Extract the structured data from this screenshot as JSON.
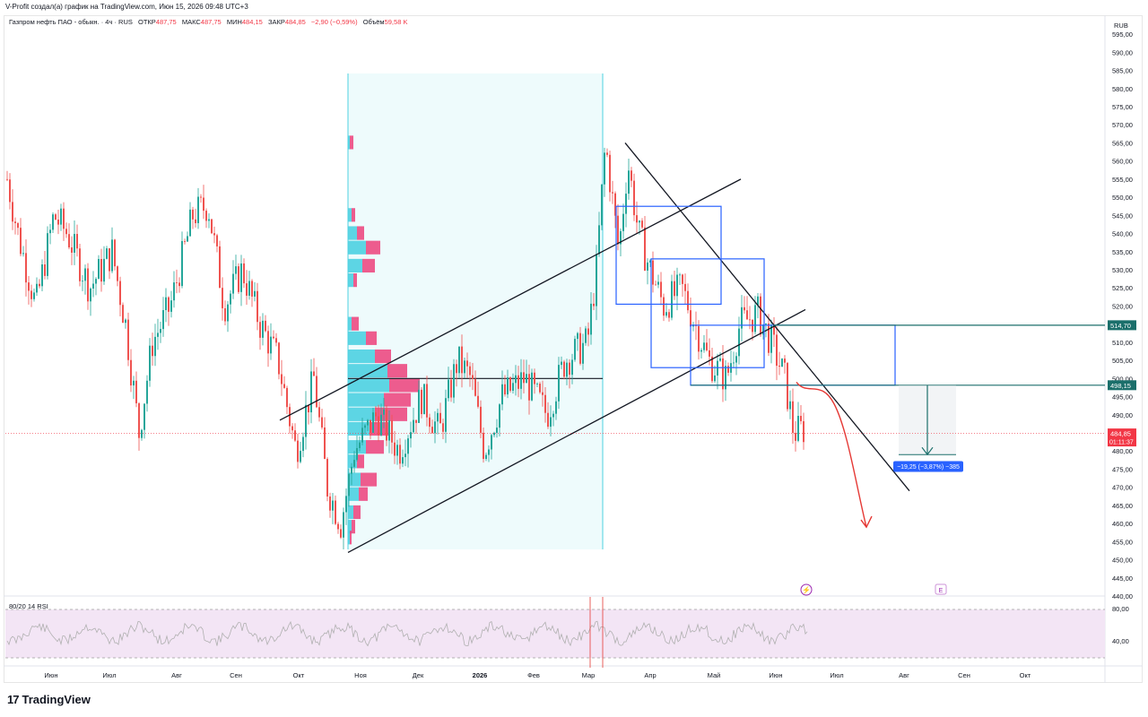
{
  "header": {
    "attribution": "V-Profit создал(а) график на TradingView.com, Июн 15, 2026 09:48 UTC+3"
  },
  "legend": {
    "symbol": "Газпром нефть ПАО - обыкн. · 4ч · RUS",
    "open_label": "ОТКР",
    "open_value": "487,75",
    "high_label": "МАКС",
    "high_value": "487,75",
    "low_label": "МИН",
    "low_value": "484,15",
    "close_label": "ЗАКР",
    "close_value": "484,85",
    "change": "−2,90 (−0,59%)",
    "volume_label": "Объём",
    "volume_value": "59,58 K"
  },
  "price_axis": {
    "unit": "RUB",
    "ticks": [
      "595,00",
      "590,00",
      "585,00",
      "580,00",
      "575,00",
      "570,00",
      "565,00",
      "560,00",
      "555,00",
      "550,00",
      "545,00",
      "540,00",
      "535,00",
      "530,00",
      "525,00",
      "520,00",
      "515,00",
      "510,00",
      "505,00",
      "500,00",
      "495,00",
      "490,00",
      "485,00",
      "480,00",
      "475,00",
      "470,00",
      "465,00",
      "460,00",
      "455,00",
      "450,00",
      "445,00",
      "440,00"
    ],
    "markers": [
      {
        "value": 514.7,
        "label": "514,70",
        "color": "#1b6f6b"
      },
      {
        "value": 498.15,
        "label": "498,15",
        "color": "#1b6f6b"
      },
      {
        "value": 484.85,
        "label": "484,85",
        "sublabel": "01:11:37",
        "color": "#f23645"
      }
    ]
  },
  "time_axis": {
    "labels": [
      "Июн",
      "Июл",
      "Авг",
      "Сен",
      "Окт",
      "Ноя",
      "Дек",
      "2026",
      "Фев",
      "Мар",
      "Апр",
      "Май",
      "Июн",
      "Июл",
      "Авг",
      "Сен",
      "Окт"
    ]
  },
  "rsi": {
    "label": "80/20 14 RSI",
    "ticks": [
      "80,00",
      "40,00"
    ]
  },
  "measure": {
    "label": "−19,25 (−3,87%) −385"
  },
  "brand": {
    "logo": "17",
    "name": "TradingView"
  },
  "colors": {
    "up": "#26a69a",
    "down": "#ef5350",
    "profile_buy": "#4dd0e1",
    "profile_sell": "#ec407a",
    "box": "#2962ff",
    "level": "#1b6f6b",
    "rsi_band": "#f3e5f5",
    "measure": "#2962ff"
  },
  "chart_data": {
    "type": "candlestick",
    "symbol": "Газпром нефть ПАО - обыкн.",
    "timeframe": "4ч",
    "y_range": [
      440,
      597
    ],
    "x_categories": [
      "Июн",
      "Июл",
      "Авг",
      "Сен",
      "Окт",
      "Ноя",
      "Дек",
      "2026",
      "Фев",
      "Мар",
      "Апр",
      "Май",
      "Июн"
    ],
    "close_path_monthly": [
      {
        "month": "Июн",
        "price": 540
      },
      {
        "month": "Июл",
        "price": 530
      },
      {
        "month": "Авг",
        "price": 545
      },
      {
        "month": "Сен",
        "price": 520
      },
      {
        "month": "Окт",
        "price": 495
      },
      {
        "month": "Ноя",
        "price": 470
      },
      {
        "month": "Дек",
        "price": 490
      },
      {
        "month": "2026",
        "price": 485
      },
      {
        "month": "Фев",
        "price": 500
      },
      {
        "month": "Мар",
        "price": 545
      },
      {
        "month": "Апр",
        "price": 530
      },
      {
        "month": "Май",
        "price": 510
      },
      {
        "month": "Июн",
        "price": 485
      }
    ],
    "levels": [
      514.7,
      498.15,
      500.0
    ],
    "last_price": 484.85,
    "projection_target": 459
  }
}
